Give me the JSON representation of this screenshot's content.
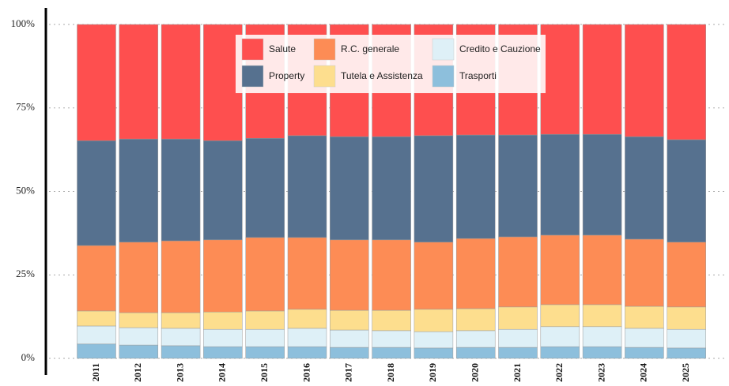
{
  "chart_data": {
    "type": "stacked_bar_100",
    "categories": [
      "2011",
      "2012",
      "2013",
      "2014",
      "2015",
      "2016",
      "2017",
      "2018",
      "2019",
      "2020",
      "2021",
      "2022",
      "2023",
      "2024",
      "2025"
    ],
    "series": [
      {
        "name": "Salute",
        "color": "#fe4f4f",
        "values": [
          34.8,
          34.3,
          34.3,
          34.8,
          34.1,
          33.3,
          33.6,
          33.6,
          33.3,
          33.1,
          33.1,
          32.9,
          32.9,
          33.6,
          34.5
        ]
      },
      {
        "name": "Property",
        "color": "#56718f",
        "values": [
          31.4,
          30.9,
          30.5,
          29.7,
          29.7,
          30.5,
          30.9,
          30.9,
          31.9,
          31.0,
          30.5,
          30.2,
          30.2,
          30.7,
          30.7
        ]
      },
      {
        "name": "R.C. generale",
        "color": "#fd8c55",
        "values": [
          19.6,
          21.1,
          21.5,
          21.6,
          22.0,
          21.5,
          21.1,
          21.1,
          20.1,
          21.0,
          21.0,
          20.8,
          20.8,
          20.1,
          19.4
        ]
      },
      {
        "name": "Tutela e Assistenza",
        "color": "#fdde8e",
        "values": [
          4.5,
          4.5,
          4.7,
          5.2,
          5.5,
          5.7,
          5.9,
          6.1,
          6.7,
          6.6,
          6.7,
          6.6,
          6.6,
          6.6,
          6.7
        ]
      },
      {
        "name": "Credito e Cauzione",
        "color": "#def0f7",
        "values": [
          5.4,
          5.2,
          5.2,
          5.2,
          5.2,
          5.5,
          5.2,
          5.0,
          4.9,
          5.0,
          5.4,
          6.0,
          6.0,
          5.7,
          5.6
        ]
      },
      {
        "name": "Trasporti",
        "color": "#8dbfdc",
        "values": [
          4.3,
          4.0,
          3.8,
          3.5,
          3.5,
          3.5,
          3.3,
          3.3,
          3.1,
          3.3,
          3.3,
          3.5,
          3.5,
          3.3,
          3.1
        ]
      }
    ],
    "ylim": [
      0,
      100
    ],
    "yticks": [
      {
        "value": 0,
        "label": "0%"
      },
      {
        "value": 25,
        "label": "25%"
      },
      {
        "value": 50,
        "label": "50%"
      },
      {
        "value": 75,
        "label": "75%"
      },
      {
        "value": 100,
        "label": "100%"
      }
    ],
    "grid": true
  }
}
